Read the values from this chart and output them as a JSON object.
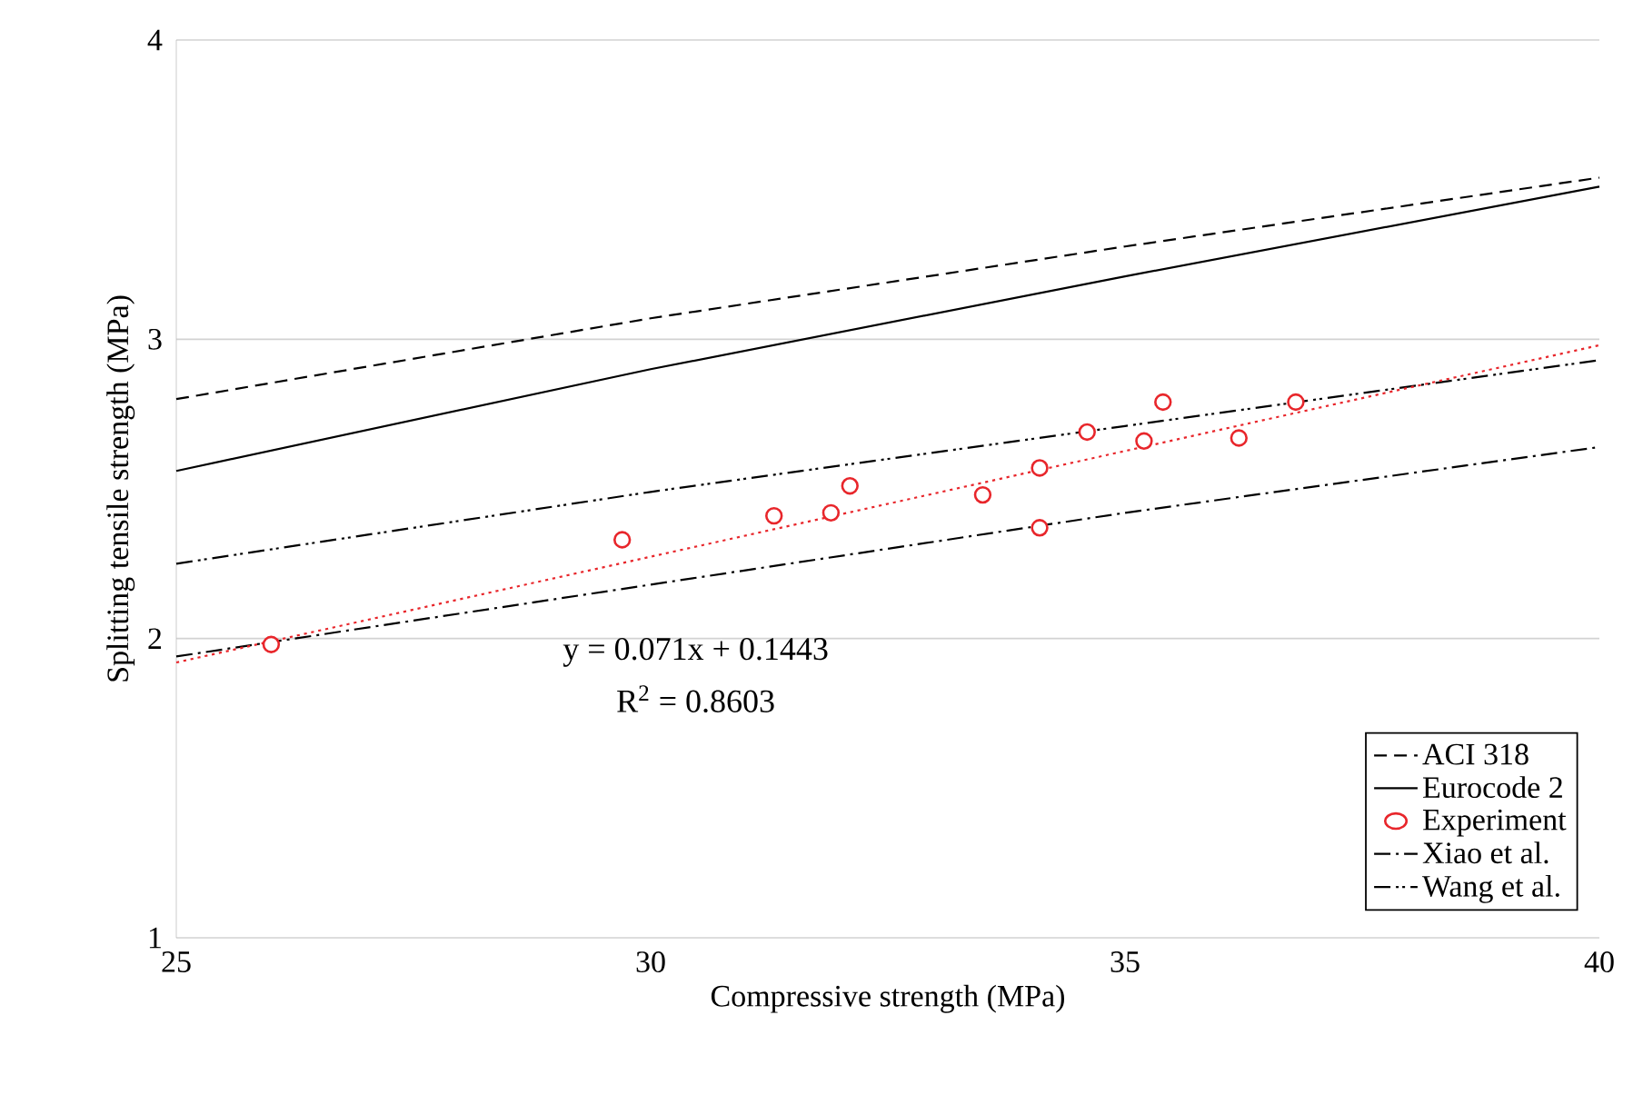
{
  "chart_data": {
    "type": "line",
    "xlabel": "Compressive strength (MPa)",
    "ylabel": "Splitting tensile strength (MPa)",
    "xlim": [
      25,
      40
    ],
    "xticks": [
      25,
      30,
      35,
      40
    ],
    "ylim": [
      1,
      4
    ],
    "yticks": [
      1,
      2,
      3,
      4
    ],
    "grid": "y",
    "legend": "bottom right",
    "annotations": [
      "y = 0.071x + 0.1443",
      "R$^{2}$ = 0.8603"
    ],
    "series": [
      {
        "name": "ACI 318",
        "color": "#000000",
        "line_style": "dashed",
        "marker": "none",
        "x": [
          25,
          30,
          35,
          40
        ],
        "values": [
          2.8,
          3.07,
          3.31,
          3.54
        ]
      },
      {
        "name": "Eurocode 2",
        "color": "#000000",
        "line_style": "solid",
        "marker": "none",
        "x": [
          25,
          30,
          35,
          40
        ],
        "values": [
          2.56,
          2.9,
          3.21,
          3.51
        ]
      },
      {
        "name": "Experiment",
        "type": "scatter",
        "color": "#e8262b",
        "marker": "circle",
        "x": [
          26.0,
          29.7,
          31.3,
          31.9,
          32.1,
          33.5,
          34.1,
          34.1,
          34.6,
          35.2,
          35.4,
          36.2,
          36.8
        ],
        "values": [
          1.98,
          2.33,
          2.41,
          2.42,
          2.51,
          2.48,
          2.57,
          2.37,
          2.69,
          2.66,
          2.79,
          2.67,
          2.79
        ]
      },
      {
        "name": "Xiao et al.",
        "color": "#000000",
        "line_style": "dashdot",
        "marker": "none",
        "x": [
          25,
          30,
          35,
          40
        ],
        "values": [
          1.94,
          2.18,
          2.42,
          2.64
        ]
      },
      {
        "name": "Wang et al.",
        "color": "#000000",
        "line_style": "dashdotdot",
        "marker": "none",
        "x": [
          25,
          30,
          35,
          40
        ],
        "values": [
          2.25,
          2.49,
          2.71,
          2.93
        ]
      },
      {
        "color": "#e8262b",
        "line_style": "dotted",
        "marker": "none",
        "x": [
          25,
          40
        ],
        "values": [
          1.92,
          2.98
        ]
      }
    ]
  }
}
